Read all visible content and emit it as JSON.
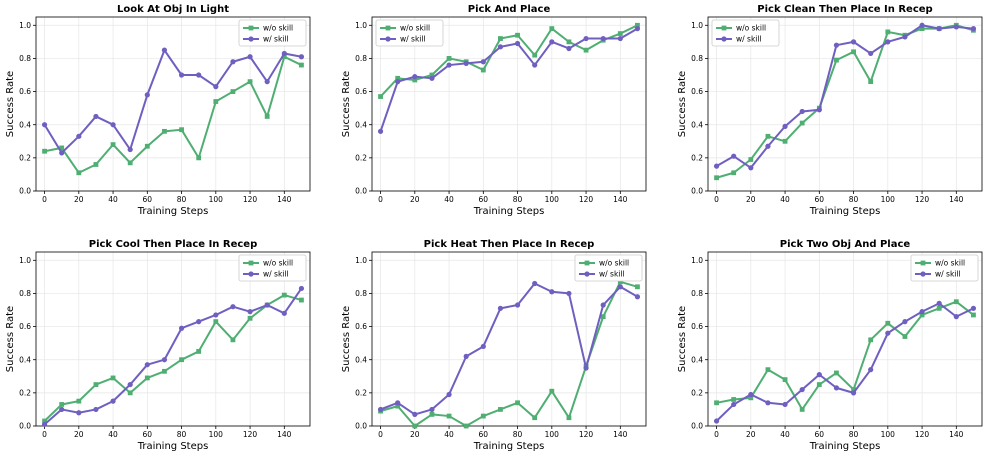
{
  "chart_data": [
    {
      "type": "line",
      "title": "Look At Obj In Light",
      "xlabel": "Training Steps",
      "ylabel": "Success Rate",
      "x": [
        0,
        10,
        20,
        30,
        40,
        50,
        60,
        70,
        80,
        90,
        100,
        110,
        120,
        130,
        140,
        150
      ],
      "xlim": [
        -5,
        155
      ],
      "ylim": [
        0,
        1.05
      ],
      "xticks": [
        0,
        20,
        40,
        60,
        80,
        100,
        120,
        140
      ],
      "yticks": [
        0.0,
        0.2,
        0.4,
        0.6,
        0.8,
        1.0
      ],
      "grid": true,
      "legend": "top-right",
      "series": [
        {
          "name": "w/o skill",
          "color": "#4fae72",
          "marker": "square",
          "values": [
            0.24,
            0.26,
            0.11,
            0.16,
            0.28,
            0.17,
            0.27,
            0.36,
            0.37,
            0.2,
            0.54,
            0.6,
            0.66,
            0.45,
            0.81,
            0.76
          ]
        },
        {
          "name": "w/ skill",
          "color": "#6f5fc0",
          "marker": "circle",
          "values": [
            0.4,
            0.23,
            0.33,
            0.45,
            0.4,
            0.25,
            0.58,
            0.85,
            0.7,
            0.7,
            0.63,
            0.78,
            0.81,
            0.66,
            0.83,
            0.81
          ]
        }
      ]
    },
    {
      "type": "line",
      "title": "Pick And Place",
      "xlabel": "Training Steps",
      "ylabel": "Success Rate",
      "x": [
        0,
        10,
        20,
        30,
        40,
        50,
        60,
        70,
        80,
        90,
        100,
        110,
        120,
        130,
        140,
        150
      ],
      "xlim": [
        -5,
        155
      ],
      "ylim": [
        0,
        1.05
      ],
      "xticks": [
        0,
        20,
        40,
        60,
        80,
        100,
        120,
        140
      ],
      "yticks": [
        0.0,
        0.2,
        0.4,
        0.6,
        0.8,
        1.0
      ],
      "grid": true,
      "legend": "top-left",
      "series": [
        {
          "name": "w/o skill",
          "color": "#4fae72",
          "marker": "square",
          "values": [
            0.57,
            0.68,
            0.67,
            0.7,
            0.8,
            0.78,
            0.73,
            0.92,
            0.94,
            0.82,
            0.98,
            0.9,
            0.85,
            0.91,
            0.95,
            1.0
          ]
        },
        {
          "name": "w/ skill",
          "color": "#6f5fc0",
          "marker": "circle",
          "values": [
            0.36,
            0.66,
            0.69,
            0.68,
            0.76,
            0.77,
            0.78,
            0.87,
            0.89,
            0.76,
            0.9,
            0.86,
            0.92,
            0.92,
            0.92,
            0.98
          ]
        }
      ]
    },
    {
      "type": "line",
      "title": "Pick Clean Then Place In Recep",
      "xlabel": "Training Steps",
      "ylabel": "Success Rate",
      "x": [
        0,
        10,
        20,
        30,
        40,
        50,
        60,
        70,
        80,
        90,
        100,
        110,
        120,
        130,
        140,
        150
      ],
      "xlim": [
        -5,
        155
      ],
      "ylim": [
        0,
        1.05
      ],
      "xticks": [
        0,
        20,
        40,
        60,
        80,
        100,
        120,
        140
      ],
      "yticks": [
        0.0,
        0.2,
        0.4,
        0.6,
        0.8,
        1.0
      ],
      "grid": true,
      "legend": "top-left",
      "series": [
        {
          "name": "w/o skill",
          "color": "#4fae72",
          "marker": "square",
          "values": [
            0.08,
            0.11,
            0.19,
            0.33,
            0.3,
            0.41,
            0.5,
            0.79,
            0.84,
            0.66,
            0.96,
            0.94,
            0.98,
            0.98,
            1.0,
            0.97
          ]
        },
        {
          "name": "w/ skill",
          "color": "#6f5fc0",
          "marker": "circle",
          "values": [
            0.15,
            0.21,
            0.14,
            0.27,
            0.39,
            0.48,
            0.49,
            0.88,
            0.9,
            0.83,
            0.9,
            0.93,
            1.0,
            0.98,
            0.99,
            0.98
          ]
        }
      ]
    },
    {
      "type": "line",
      "title": "Pick Cool Then Place In Recep",
      "xlabel": "Training Steps",
      "ylabel": "Success Rate",
      "x": [
        0,
        10,
        20,
        30,
        40,
        50,
        60,
        70,
        80,
        90,
        100,
        110,
        120,
        130,
        140,
        150
      ],
      "xlim": [
        -5,
        155
      ],
      "ylim": [
        0,
        1.05
      ],
      "xticks": [
        0,
        20,
        40,
        60,
        80,
        100,
        120,
        140
      ],
      "yticks": [
        0.0,
        0.2,
        0.4,
        0.6,
        0.8,
        1.0
      ],
      "grid": true,
      "legend": "top-right",
      "series": [
        {
          "name": "w/o skill",
          "color": "#4fae72",
          "marker": "square",
          "values": [
            0.03,
            0.13,
            0.15,
            0.25,
            0.29,
            0.2,
            0.29,
            0.33,
            0.4,
            0.45,
            0.63,
            0.52,
            0.65,
            0.73,
            0.79,
            0.76
          ]
        },
        {
          "name": "w/ skill",
          "color": "#6f5fc0",
          "marker": "circle",
          "values": [
            0.01,
            0.1,
            0.08,
            0.1,
            0.15,
            0.25,
            0.37,
            0.4,
            0.59,
            0.63,
            0.67,
            0.72,
            0.69,
            0.73,
            0.68,
            0.83
          ]
        }
      ]
    },
    {
      "type": "line",
      "title": "Pick Heat Then Place In Recep",
      "xlabel": "Training Steps",
      "ylabel": "Success Rate",
      "x": [
        0,
        10,
        20,
        30,
        40,
        50,
        60,
        70,
        80,
        90,
        100,
        110,
        120,
        130,
        140,
        150
      ],
      "xlim": [
        -5,
        155
      ],
      "ylim": [
        0,
        1.05
      ],
      "xticks": [
        0,
        20,
        40,
        60,
        80,
        100,
        120,
        140
      ],
      "yticks": [
        0.0,
        0.2,
        0.4,
        0.6,
        0.8,
        1.0
      ],
      "grid": true,
      "legend": "top-right",
      "series": [
        {
          "name": "w/o skill",
          "color": "#4fae72",
          "marker": "square",
          "values": [
            0.09,
            0.12,
            0.0,
            0.07,
            0.06,
            0.0,
            0.06,
            0.1,
            0.14,
            0.05,
            0.21,
            0.05,
            0.36,
            0.66,
            0.87,
            0.84
          ]
        },
        {
          "name": "w/ skill",
          "color": "#6f5fc0",
          "marker": "circle",
          "values": [
            0.1,
            0.14,
            0.07,
            0.1,
            0.19,
            0.42,
            0.48,
            0.71,
            0.73,
            0.86,
            0.81,
            0.8,
            0.35,
            0.73,
            0.84,
            0.78
          ]
        }
      ]
    },
    {
      "type": "line",
      "title": "Pick Two Obj And Place",
      "xlabel": "Training Steps",
      "ylabel": "Success Rate",
      "x": [
        0,
        10,
        20,
        30,
        40,
        50,
        60,
        70,
        80,
        90,
        100,
        110,
        120,
        130,
        140,
        150
      ],
      "xlim": [
        -5,
        155
      ],
      "ylim": [
        0,
        1.05
      ],
      "xticks": [
        0,
        20,
        40,
        60,
        80,
        100,
        120,
        140
      ],
      "yticks": [
        0.0,
        0.2,
        0.4,
        0.6,
        0.8,
        1.0
      ],
      "grid": true,
      "legend": "top-right",
      "series": [
        {
          "name": "w/o skill",
          "color": "#4fae72",
          "marker": "square",
          "values": [
            0.14,
            0.16,
            0.17,
            0.34,
            0.28,
            0.1,
            0.25,
            0.32,
            0.22,
            0.52,
            0.62,
            0.54,
            0.67,
            0.71,
            0.75,
            0.67
          ]
        },
        {
          "name": "w/ skill",
          "color": "#6f5fc0",
          "marker": "circle",
          "values": [
            0.03,
            0.13,
            0.19,
            0.14,
            0.13,
            0.22,
            0.31,
            0.23,
            0.2,
            0.34,
            0.56,
            0.63,
            0.69,
            0.74,
            0.66,
            0.71
          ]
        }
      ]
    }
  ]
}
